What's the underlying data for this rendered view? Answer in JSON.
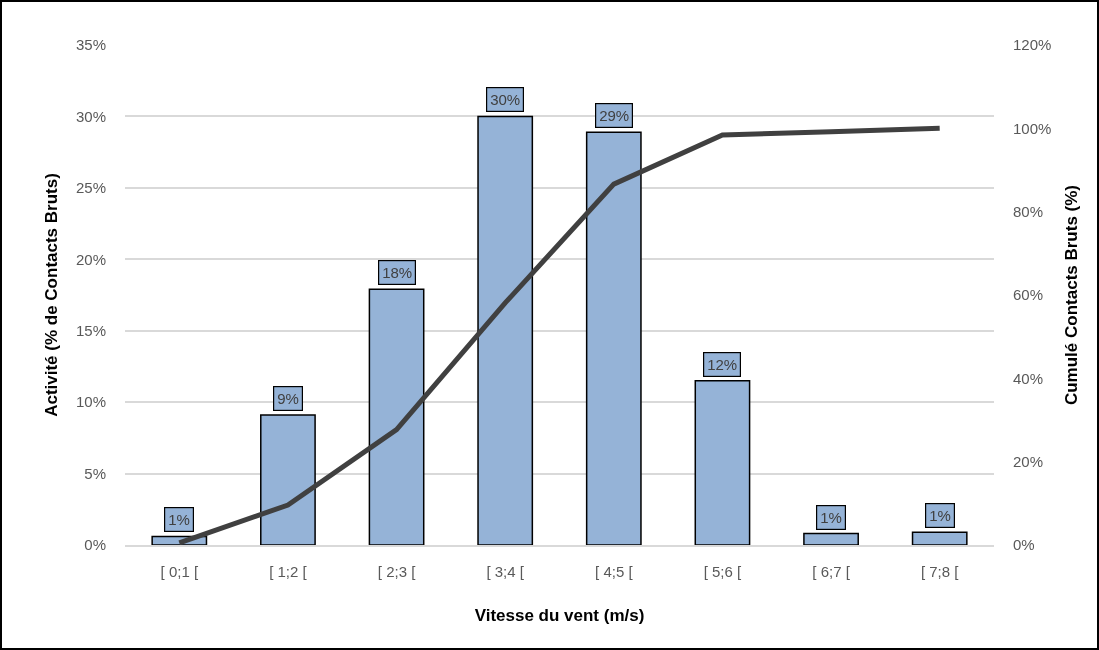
{
  "chart_data": {
    "type": "bar",
    "xlabel": "Vitesse du vent (m/s)",
    "ylabel": "Activité (% de Contacts Bruts)",
    "y2label": "Cumulé Contacts Bruts (%)",
    "categories": [
      "[ 0;1 [",
      "[ 1;2 [",
      "[ 2;3 [",
      "[ 3;4 [",
      "[ 4;5 [",
      "[ 5;6 [",
      "[ 6;7 [",
      "[ 7;8 ["
    ],
    "series": [
      {
        "color": "#95b3d7",
        "values": [
          0.6,
          9.1,
          17.9,
          30.0,
          28.9,
          11.5,
          0.8,
          0.9
        ],
        "value_labels": [
          "1%",
          "9%",
          "18%",
          "30%",
          "29%",
          "12%",
          "1%",
          "1%"
        ]
      },
      {
        "type": "line",
        "axis": "y2",
        "color": "#404040",
        "values": [
          0.5,
          9.6,
          27.7,
          58.1,
          86.6,
          98.4,
          99.2,
          100
        ],
        "marker": "none",
        "line_style": "solid"
      }
    ],
    "ylim": [
      0,
      35
    ],
    "yticks": [
      {
        "value": 0,
        "label": "0%"
      },
      {
        "value": 5,
        "label": "5%"
      },
      {
        "value": 10,
        "label": "10%"
      },
      {
        "value": 15,
        "label": "15%"
      },
      {
        "value": 20,
        "label": "20%"
      },
      {
        "value": 25,
        "label": "25%"
      },
      {
        "value": 30,
        "label": "30%"
      },
      {
        "value": 35,
        "label": "35%"
      }
    ],
    "y2lim": [
      0,
      120
    ],
    "y2ticks": [
      {
        "value": 0,
        "label": "0%"
      },
      {
        "value": 20,
        "label": "20%"
      },
      {
        "value": 40,
        "label": "40%"
      },
      {
        "value": 60,
        "label": "60%"
      },
      {
        "value": 80,
        "label": "80%"
      },
      {
        "value": 100,
        "label": "100%"
      },
      {
        "value": 120,
        "label": "120%"
      }
    ],
    "grid": "y",
    "legend": false
  }
}
